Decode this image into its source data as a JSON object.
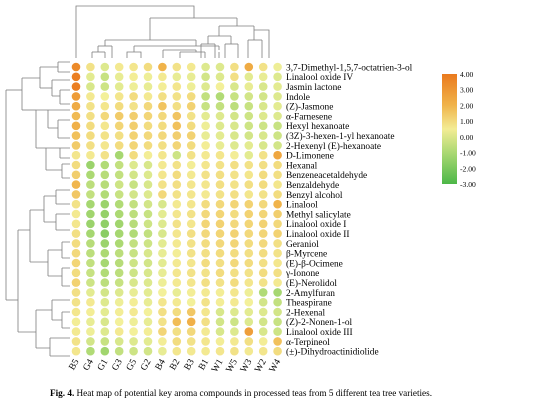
{
  "chart_data": {
    "type": "heatmap",
    "title": "",
    "columns": [
      "B5",
      "G4",
      "G1",
      "G3",
      "G5",
      "G2",
      "B4",
      "B2",
      "B3",
      "B1",
      "W1",
      "W5",
      "W3",
      "W2",
      "W4"
    ],
    "rows": [
      "3,7-Dimethyl-1,5,7-octatrien-3-ol",
      "Linalool oxide IV",
      "Jasmin lactone",
      "Indole",
      "(Z)-Jasmone",
      "α-Farnesene",
      "Hexyl hexanoate",
      "(3Z)-3-hexen-1-yl hexanoate",
      "2-Hexenyl (E)-hexanoate",
      "D-Limonene",
      "Hexanal",
      "Benzeneacetaldehyde",
      "Benzaldehyde",
      "Benzyl alcohol",
      "Linalool",
      "Methyl salicylate",
      "Linalool oxide I",
      "Linalool oxide II",
      "Geraniol",
      "β-Myrcene",
      "(E)-β-Ocimene",
      "γ-Ionone",
      "(E)-Nerolidol",
      "2-Amylfuran",
      "Theaspirane",
      "2-Hexenal",
      "(Z)-2-Nonen-1-ol",
      "Linalool oxide III",
      "α-Terpineol",
      "(±)-Dihydroactinidiolide"
    ],
    "values": [
      [
        3.4,
        0.4,
        -0.4,
        0.2,
        0.3,
        0.6,
        1.8,
        0.4,
        0.2,
        -0.4,
        -0.4,
        0.5,
        2.1,
        0.4,
        -0.1
      ],
      [
        3.8,
        -0.3,
        -0.8,
        -0.2,
        0.1,
        -0.1,
        0.2,
        -0.2,
        -0.2,
        -0.6,
        -0.4,
        0.5,
        -0.3,
        -0.2,
        -0.4
      ],
      [
        3.8,
        -0.5,
        -0.7,
        -0.3,
        -0.1,
        -0.2,
        0.1,
        0.3,
        -0.1,
        -0.4,
        0.0,
        -0.5,
        -0.2,
        -0.5,
        -0.3
      ],
      [
        2.7,
        0.2,
        0.0,
        0.3,
        0.6,
        0.2,
        0.5,
        0.4,
        0.6,
        -0.9,
        -1.2,
        -0.8,
        -0.6,
        -0.6,
        -0.4
      ],
      [
        2.1,
        0.4,
        0.3,
        0.6,
        0.4,
        0.7,
        1.3,
        0.5,
        0.9,
        -0.8,
        -0.9,
        -1.0,
        -0.8,
        -0.5,
        -0.3
      ],
      [
        1.6,
        0.5,
        0.7,
        1.1,
        1.0,
        0.8,
        0.7,
        1.3,
        0.4,
        -0.3,
        -0.4,
        -0.6,
        -0.7,
        -0.4,
        -0.4
      ],
      [
        1.9,
        0.6,
        0.3,
        0.8,
        1.0,
        0.6,
        0.6,
        1.4,
        0.6,
        -0.1,
        -0.4,
        -0.5,
        -0.7,
        -0.7,
        -0.8
      ],
      [
        1.4,
        0.6,
        0.4,
        0.5,
        0.9,
        0.7,
        0.7,
        1.0,
        0.9,
        -0.2,
        -0.3,
        -0.5,
        -0.6,
        -0.5,
        -0.7
      ],
      [
        1.1,
        0.5,
        0.3,
        0.6,
        0.8,
        0.6,
        0.5,
        0.8,
        0.6,
        0.1,
        -0.2,
        -0.4,
        -0.3,
        -0.5,
        -0.6
      ],
      [
        0.3,
        0.2,
        0.4,
        -1.4,
        0.6,
        0.1,
        0.3,
        -0.7,
        0.4,
        0.2,
        0.3,
        0.1,
        -0.3,
        0.4,
        2.3
      ],
      [
        0.6,
        -1.6,
        -1.2,
        -0.9,
        -0.4,
        -0.5,
        0.2,
        0.4,
        0.1,
        0.3,
        0.4,
        0.5,
        0.4,
        0.5,
        0.6
      ],
      [
        1.0,
        -1.3,
        -1.1,
        -0.9,
        -0.6,
        -0.4,
        0.3,
        0.6,
        0.2,
        0.4,
        0.5,
        0.4,
        0.3,
        0.6,
        0.5
      ],
      [
        1.7,
        -1.0,
        -1.1,
        -0.7,
        -0.8,
        -0.5,
        0.4,
        0.5,
        0.3,
        0.3,
        0.5,
        0.4,
        0.5,
        0.6,
        0.3
      ],
      [
        1.2,
        -0.9,
        -1.2,
        -0.8,
        -0.6,
        -0.4,
        0.7,
        0.4,
        0.3,
        0.2,
        0.4,
        0.5,
        0.3,
        0.4,
        0.6
      ],
      [
        0.4,
        -1.4,
        -1.6,
        -1.2,
        -0.9,
        -0.6,
        -0.5,
        0.2,
        0.3,
        0.6,
        0.7,
        0.8,
        0.9,
        0.7,
        1.8
      ],
      [
        0.2,
        -1.5,
        -1.7,
        -1.3,
        -1.0,
        -0.8,
        -0.3,
        0.3,
        0.4,
        0.7,
        0.8,
        0.6,
        0.9,
        0.8,
        1.0
      ],
      [
        0.3,
        -1.6,
        -1.8,
        -1.5,
        -1.1,
        -0.7,
        -0.4,
        0.4,
        0.3,
        0.8,
        0.9,
        0.7,
        0.8,
        0.9,
        0.7
      ],
      [
        0.5,
        -1.4,
        -1.9,
        -1.4,
        -1.2,
        -0.9,
        -0.5,
        0.3,
        0.5,
        0.7,
        0.8,
        0.9,
        0.7,
        0.8,
        0.9
      ],
      [
        0.6,
        -1.1,
        -1.6,
        -1.3,
        -0.9,
        -0.7,
        -0.3,
        0.2,
        0.4,
        0.6,
        0.7,
        0.8,
        0.6,
        0.7,
        0.5
      ],
      [
        0.7,
        -1.0,
        -1.3,
        -1.0,
        -0.8,
        -0.5,
        -0.2,
        0.1,
        0.4,
        0.5,
        0.6,
        0.6,
        0.5,
        0.6,
        0.4
      ],
      [
        0.8,
        -0.9,
        -1.4,
        -1.1,
        -0.7,
        -0.6,
        -0.3,
        0.2,
        0.3,
        0.6,
        0.5,
        0.7,
        0.6,
        0.5,
        0.3
      ],
      [
        0.6,
        -0.8,
        -1.2,
        -1.0,
        -0.7,
        -0.5,
        -0.2,
        0.3,
        0.4,
        0.4,
        0.6,
        0.5,
        0.4,
        0.6,
        0.5
      ],
      [
        0.9,
        -0.7,
        -1.0,
        -0.8,
        -0.5,
        -0.4,
        -0.1,
        0.2,
        0.3,
        0.5,
        0.4,
        0.6,
        0.3,
        0.4,
        0.2
      ],
      [
        0.5,
        -0.3,
        -0.6,
        -0.4,
        -0.2,
        -0.3,
        0.0,
        -0.2,
        0.1,
        0.2,
        0.1,
        0.3,
        -0.1,
        -1.2,
        -1.4
      ],
      [
        0.4,
        0.2,
        -0.4,
        -0.1,
        0.1,
        -0.2,
        0.3,
        0.2,
        0.0,
        0.4,
        0.1,
        0.2,
        0.0,
        -0.6,
        -0.9
      ],
      [
        0.3,
        0.1,
        -0.3,
        0.1,
        0.2,
        0.0,
        0.5,
        0.6,
        1.2,
        0.3,
        -0.5,
        -0.4,
        -0.3,
        -0.4,
        -0.6
      ],
      [
        0.1,
        -0.2,
        -0.5,
        0.0,
        -0.1,
        -0.2,
        0.4,
        1.5,
        1.9,
        0.5,
        -0.6,
        -0.7,
        -0.4,
        -0.6,
        -0.8
      ],
      [
        0.2,
        -0.1,
        -0.4,
        0.2,
        0.0,
        0.1,
        0.8,
        0.5,
        0.7,
        0.2,
        -0.5,
        -0.4,
        2.6,
        -0.5,
        -0.7
      ],
      [
        0.4,
        -0.6,
        -0.8,
        -0.5,
        -0.4,
        -0.3,
        0.1,
        0.6,
        0.4,
        0.3,
        0.1,
        0.2,
        0.5,
        0.1,
        1.4
      ],
      [
        0.3,
        -1.2,
        -1.5,
        -0.9,
        -0.7,
        -0.6,
        -0.2,
        0.3,
        0.2,
        0.2,
        0.3,
        0.4,
        0.2,
        0.3,
        0.6
      ]
    ],
    "colorbar": {
      "ticks": [
        "4.00",
        "3.00",
        "2.00",
        "1.00",
        "0.00",
        "-1.00",
        "-2.00",
        "-3.00"
      ],
      "range": [
        -3,
        4
      ],
      "colors": {
        "high": "#ea7a1e",
        "mid": "#f3f09a",
        "low": "#4cb748"
      }
    }
  },
  "caption": {
    "label": "Fig. 4.",
    "text": "Heat map of potential key aroma compounds in processed teas from 5 different tea tree varieties."
  }
}
